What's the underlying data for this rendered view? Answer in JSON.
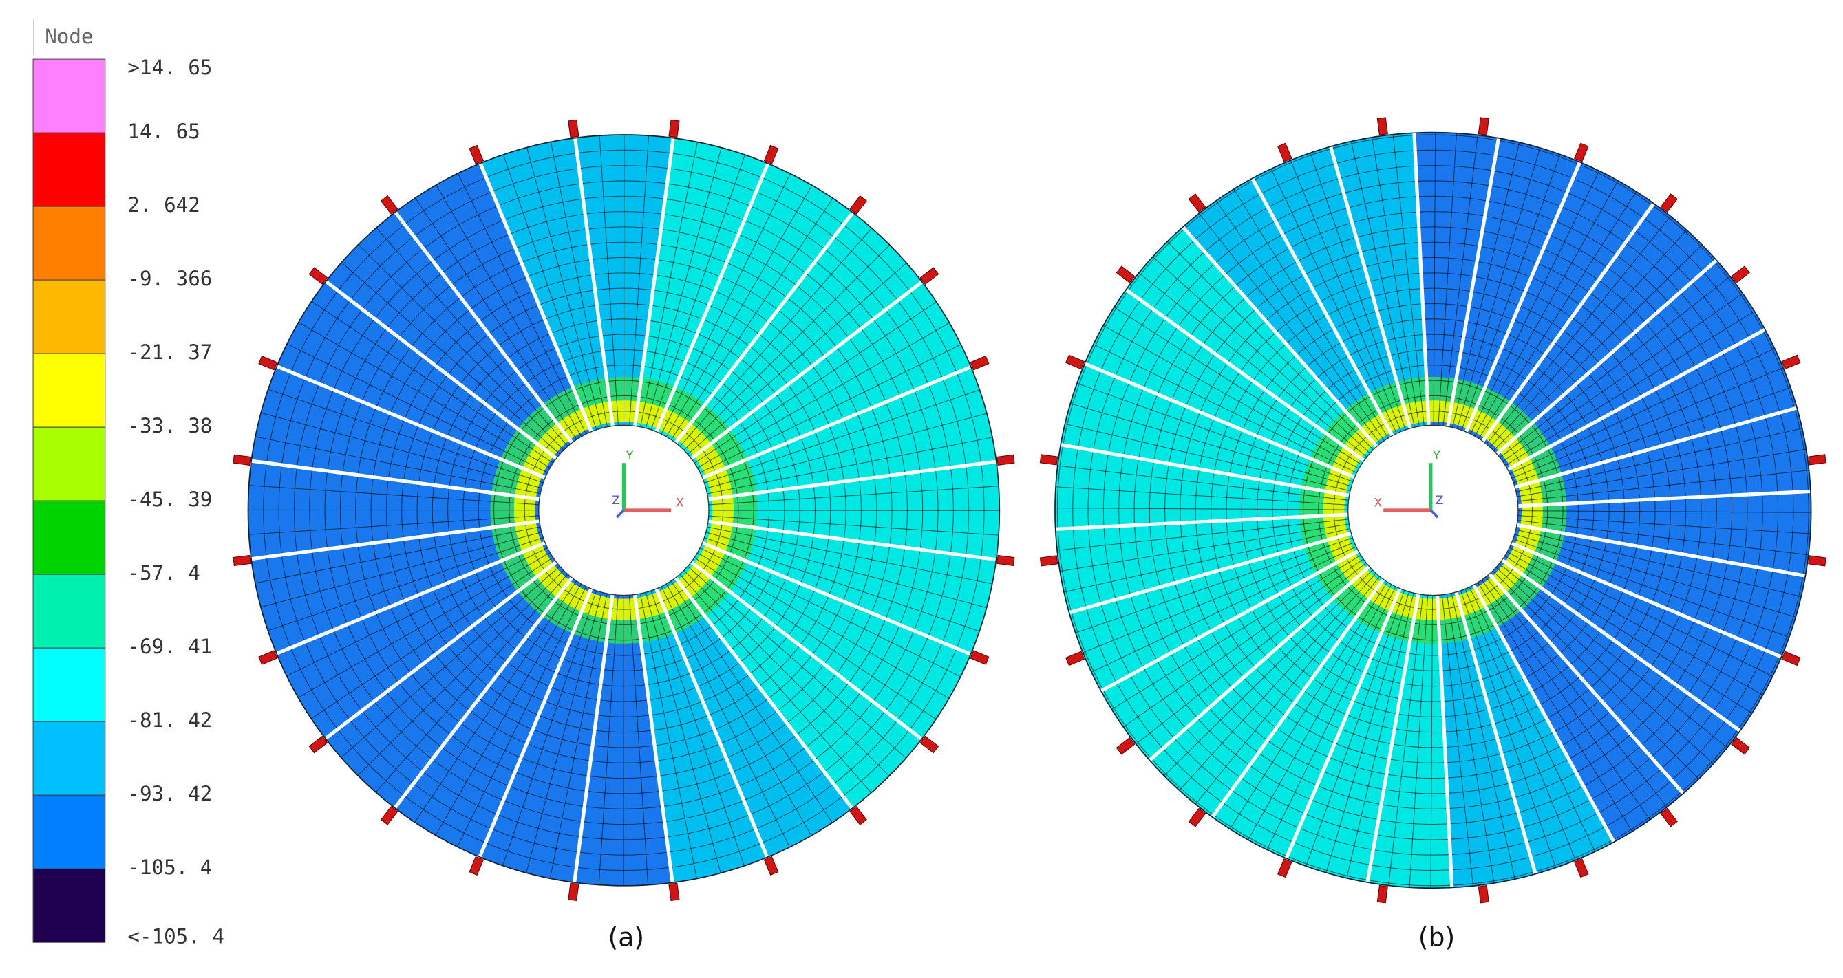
{
  "legend": {
    "title": "Node",
    "labels": [
      ">14. 65",
      "14. 65",
      "2. 642",
      "-9. 366",
      "-21. 37",
      "-33. 38",
      "-45. 39",
      "-57. 4",
      "-69. 41",
      "-81. 42",
      "-93. 42",
      "-105. 4",
      "<-105. 4"
    ],
    "colors": [
      "#ff80ff",
      "#ff0000",
      "#ff8000",
      "#ffb800",
      "#ffff00",
      "#a8ff00",
      "#00d400",
      "#00f0b0",
      "#00ffff",
      "#00bfff",
      "#0080ff",
      "#200050"
    ]
  },
  "panels": [
    {
      "caption": "(a)",
      "axes": [
        "Y",
        "X",
        "Z"
      ]
    },
    {
      "caption": "(b)",
      "axes": [
        "Y",
        "X",
        "Z"
      ]
    }
  ]
}
